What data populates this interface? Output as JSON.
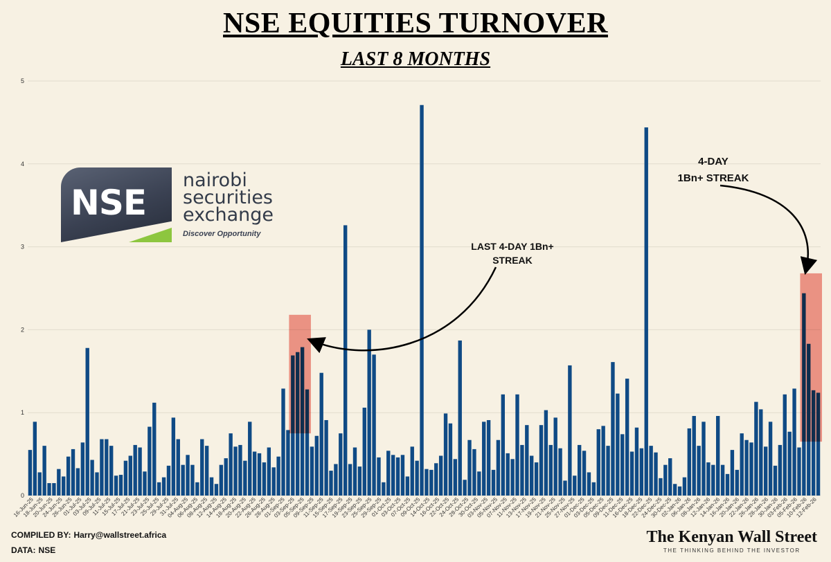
{
  "title": "NSE EQUITIES TURNOVER",
  "subtitle": "LAST 8 MONTHS",
  "footer": {
    "compiled_label": "COMPILED BY:",
    "compiled_value": "Harry@wallstreet.africa",
    "data_label": "DATA:",
    "data_value": "NSE"
  },
  "brand": {
    "name": "The Kenyan Wall Street",
    "tagline": "THE THINKING BEHIND THE INVESTOR"
  },
  "logo": {
    "letters": "NSE",
    "word1": "nairobi",
    "word2": "securities",
    "word3": "exchange",
    "tagline": "Discover Opportunity"
  },
  "annotations": {
    "left_line1": "LAST 4-DAY 1Bn+",
    "left_line2": "STREAK",
    "right_line1": "4-DAY",
    "right_line2": "1Bn+ STREAK"
  },
  "colors": {
    "bar": "#0f4a85",
    "highlight": "#f08a80",
    "grid": "#e2dccd",
    "background": "#f7f1e3"
  },
  "chart_data": {
    "type": "bar",
    "ylim": [
      0,
      5
    ],
    "yticks": [
      0,
      1,
      2,
      3,
      4,
      5
    ],
    "grid": true,
    "title": "NSE EQUITIES TURNOVER",
    "subtitle": "LAST 8 MONTHS",
    "xtick_labels": [
      "16-Jun-25",
      "18-Jun-25",
      "20-Jun-25",
      "24-Jun-25",
      "26-Jun-25",
      "01-Jul-25",
      "03-Jul-25",
      "09-Jul-25",
      "11-Jul-25",
      "15-Jul-25",
      "17-Jul-25",
      "21-Jul-25",
      "23-Jul-25",
      "25-Jul-25",
      "29-Jul-25",
      "31-Jul-25",
      "04-Aug-25",
      "06-Aug-25",
      "08-Aug-25",
      "12-Aug-25",
      "14-Aug-25",
      "18-Aug-25",
      "20-Aug-25",
      "22-Aug-25",
      "26-Aug-25",
      "28-Aug-25",
      "01-Sep-25",
      "03-Sep-25",
      "05-Sep-25",
      "09-Sep-25",
      "11-Sep-25",
      "15-Sep-25",
      "17-Sep-25",
      "19-Sep-25",
      "23-Sep-25",
      "25-Sep-25",
      "29-Sep-25",
      "01-Oct-25",
      "03-Oct-25",
      "07-Oct-25",
      "09-Oct-25",
      "14-Oct-25",
      "16-Oct-25",
      "22-Oct-25",
      "24-Oct-25",
      "28-Oct-25",
      "30-Oct-25",
      "03-Nov-25",
      "05-Nov-25",
      "07-Nov-25",
      "11-Nov-25",
      "13-Nov-25",
      "17-Nov-25",
      "19-Nov-25",
      "21-Nov-25",
      "25-Nov-25",
      "27-Nov-25",
      "01-Dec-25",
      "03-Dec-25",
      "05-Dec-25",
      "09-Dec-25",
      "11-Dec-25",
      "16-Dec-25",
      "18-Dec-25",
      "22-Dec-25",
      "24-Dec-25",
      "30-Dec-25",
      "02-Jan-26",
      "06-Jan-26",
      "08-Jan-26",
      "12-Jan-26",
      "14-Jan-26",
      "16-Jan-26",
      "20-Jan-26",
      "22-Jan-26",
      "26-Jan-26",
      "28-Jan-26",
      "30-Jan-26",
      "03-Feb-26",
      "05-Feb-26",
      "10-Feb-26",
      "12-Feb-26"
    ],
    "values": [
      0.55,
      0.89,
      0.28,
      0.6,
      0.15,
      0.15,
      0.32,
      0.23,
      0.47,
      0.56,
      0.33,
      0.64,
      1.78,
      0.43,
      0.28,
      0.68,
      0.68,
      0.6,
      0.24,
      0.25,
      0.42,
      0.48,
      0.61,
      0.58,
      0.29,
      0.83,
      1.12,
      0.16,
      0.22,
      0.36,
      0.94,
      0.68,
      0.37,
      0.49,
      0.37,
      0.16,
      0.68,
      0.6,
      0.22,
      0.14,
      0.37,
      0.45,
      0.75,
      0.59,
      0.61,
      0.42,
      0.89,
      0.53,
      0.51,
      0.4,
      0.58,
      0.34,
      0.47,
      1.29,
      0.79,
      1.69,
      1.73,
      1.79,
      1.28,
      0.59,
      0.72,
      1.48,
      0.91,
      0.3,
      0.38,
      0.75,
      3.26,
      0.38,
      0.58,
      0.35,
      1.06,
      2.0,
      1.7,
      0.46,
      0.16,
      0.54,
      0.49,
      0.46,
      0.49,
      0.23,
      0.59,
      0.42,
      4.71,
      0.32,
      0.31,
      0.39,
      0.48,
      0.99,
      0.87,
      0.44,
      1.87,
      0.19,
      0.67,
      0.56,
      0.29,
      0.89,
      0.91,
      0.31,
      0.67,
      1.22,
      0.51,
      0.44,
      1.22,
      0.61,
      0.85,
      0.48,
      0.4,
      0.85,
      1.03,
      0.61,
      0.94,
      0.57,
      0.18,
      1.57,
      0.24,
      0.61,
      0.54,
      0.28,
      0.16,
      0.8,
      0.84,
      0.6,
      1.61,
      1.23,
      0.74,
      1.41,
      0.53,
      0.82,
      0.57,
      4.44,
      0.6,
      0.52,
      0.21,
      0.37,
      0.45,
      0.14,
      0.11,
      0.22,
      0.81,
      0.96,
      0.6,
      0.89,
      0.4,
      0.37,
      0.96,
      0.37,
      0.26,
      0.55,
      0.31,
      0.75,
      0.67,
      0.64,
      1.13,
      1.04,
      0.59,
      0.89,
      0.36,
      0.61,
      1.22,
      0.77,
      1.29,
      0.58,
      2.44,
      1.83,
      1.27,
      1.24
    ]
  }
}
